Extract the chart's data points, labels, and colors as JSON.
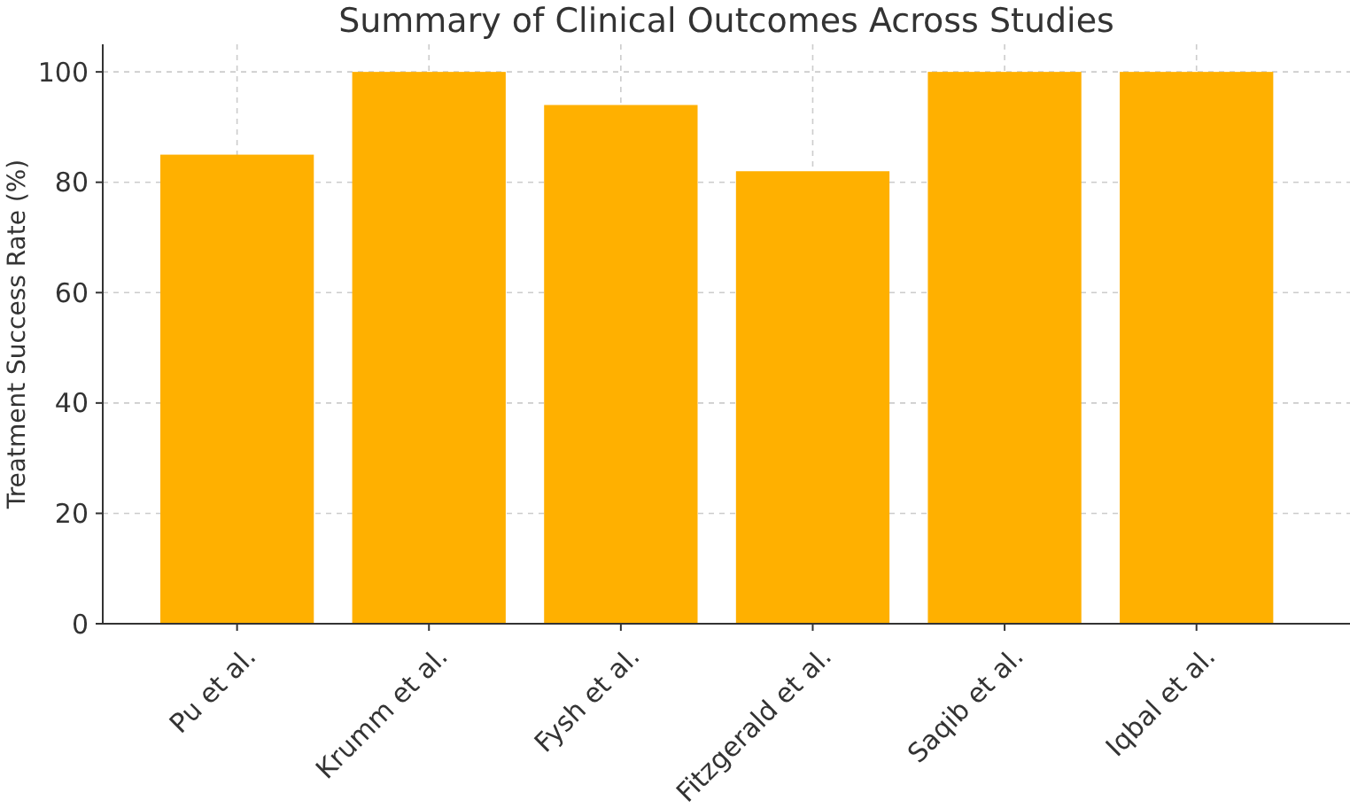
{
  "chart_data": {
    "type": "bar",
    "title": "Summary of Clinical Outcomes Across Studies",
    "ylabel": "Treatment Success Rate (%)",
    "categories": [
      "Pu et al.",
      "Krumm et al.",
      "Fysh et al.",
      "Fitzgerald et al.",
      "Saqib et al.",
      "Iqbal et al."
    ],
    "values": [
      85,
      100,
      94,
      82,
      100,
      100
    ],
    "color": "#ffb000",
    "ylim": [
      0,
      105
    ],
    "yticks": [
      0,
      20,
      40,
      60,
      80,
      100
    ],
    "grid": true
  }
}
